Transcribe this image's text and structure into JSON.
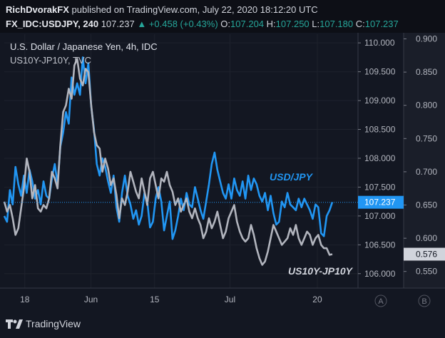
{
  "header": {
    "author": "RichDvorakFX",
    "published_text": "published on TradingView.com, July 22, 2020 18:12:20 UTC",
    "symbol": "FX_IDC:USDJPY, 240",
    "last": "107.237",
    "change_arrow": "▲",
    "change": "+0.458 (+0.43%)",
    "o_label": "O:",
    "o_value": "107.204",
    "h_label": "H:",
    "h_value": "107.250",
    "l_label": "L:",
    "l_value": "107.180",
    "c_label": "C:",
    "c_value": "107.237"
  },
  "legend": {
    "main": "U.S. Dollar / Japanese Yen, 4h, IDC",
    "overlay": "US10Y-JP10Y, TVC"
  },
  "footer": {
    "brand": "TradingView",
    "logo_icon": "tradingview-logo-icon"
  },
  "colors": {
    "background": "#131722",
    "usdjpy": "#2196f3",
    "spread": "#b2b5be",
    "last_line": "#2196f3"
  },
  "chart_data": {
    "type": "line",
    "x_ticks": [
      "18",
      "Jun",
      "15",
      "Jul",
      "20"
    ],
    "axis_badges": [
      "A",
      "B"
    ],
    "right_axis_usdjpy": {
      "ticks": [
        "110.000",
        "109.500",
        "109.000",
        "108.500",
        "108.000",
        "107.500",
        "107.000",
        "106.500",
        "106.000"
      ],
      "range": [
        105.75,
        110.15
      ]
    },
    "right_axis_spread": {
      "ticks": [
        "0.900",
        "0.850",
        "0.800",
        "0.750",
        "0.700",
        "0.650",
        "0.600",
        "0.550"
      ],
      "range": [
        0.525,
        0.907
      ]
    },
    "last_value_usdjpy": "107.237",
    "last_value_spread": "0.576",
    "series": [
      {
        "name": "USD/JPY",
        "axis": "usdjpy",
        "values": [
          107.0,
          106.9,
          107.45,
          107.2,
          107.85,
          107.55,
          107.35,
          107.7,
          107.4,
          107.8,
          107.6,
          107.3,
          107.45,
          107.2,
          107.6,
          107.35,
          107.3,
          107.65,
          107.9,
          107.55,
          108.2,
          108.45,
          108.8,
          108.6,
          109.4,
          109.1,
          109.3,
          109.1,
          109.75,
          109.3,
          109.65,
          108.9,
          108.5,
          107.9,
          107.7,
          108.0,
          107.85,
          107.6,
          107.4,
          107.7,
          107.15,
          106.9,
          107.4,
          107.7,
          107.35,
          107.2,
          106.95,
          107.1,
          106.85,
          107.0,
          107.4,
          107.25,
          106.8,
          106.9,
          107.3,
          107.5,
          107.25,
          106.75,
          107.0,
          107.25,
          106.6,
          106.75,
          107.0,
          107.3,
          107.1,
          107.4,
          107.2,
          107.15,
          107.5,
          107.3,
          107.1,
          106.95,
          107.25,
          107.55,
          107.9,
          108.1,
          107.8,
          107.6,
          107.4,
          107.3,
          107.55,
          107.3,
          107.65,
          107.45,
          107.35,
          107.6,
          107.3,
          107.7,
          107.45,
          107.65,
          107.55,
          107.35,
          107.25,
          107.4,
          107.1,
          107.35,
          107.05,
          106.85,
          106.9,
          107.25,
          107.15,
          107.4,
          107.2,
          107.15,
          107.1,
          107.3,
          107.15,
          107.3,
          107.2,
          107.1,
          106.95,
          107.2,
          107.15,
          106.7,
          106.65,
          107.0,
          107.1,
          107.24
        ],
        "color": "#2196f3"
      },
      {
        "name": "US10Y-JP10Y",
        "axis": "spread",
        "values": [
          0.655,
          0.64,
          0.65,
          0.63,
          0.605,
          0.615,
          0.645,
          0.675,
          0.72,
          0.7,
          0.66,
          0.68,
          0.645,
          0.64,
          0.65,
          0.645,
          0.66,
          0.7,
          0.69,
          0.675,
          0.74,
          0.79,
          0.8,
          0.825,
          0.81,
          0.86,
          0.87,
          0.84,
          0.83,
          0.855,
          0.85,
          0.8,
          0.76,
          0.74,
          0.735,
          0.7,
          0.72,
          0.705,
          0.68,
          0.69,
          0.665,
          0.63,
          0.66,
          0.65,
          0.67,
          0.7,
          0.685,
          0.67,
          0.66,
          0.69,
          0.67,
          0.65,
          0.69,
          0.7,
          0.68,
          0.66,
          0.69,
          0.685,
          0.7,
          0.68,
          0.67,
          0.65,
          0.66,
          0.64,
          0.65,
          0.66,
          0.64,
          0.63,
          0.645,
          0.63,
          0.62,
          0.6,
          0.61,
          0.63,
          0.615,
          0.625,
          0.64,
          0.62,
          0.6,
          0.61,
          0.63,
          0.64,
          0.65,
          0.625,
          0.61,
          0.6,
          0.595,
          0.6,
          0.62,
          0.605,
          0.585,
          0.57,
          0.56,
          0.565,
          0.58,
          0.6,
          0.62,
          0.61,
          0.6,
          0.59,
          0.595,
          0.6,
          0.615,
          0.605,
          0.62,
          0.6,
          0.59,
          0.6,
          0.61,
          0.605,
          0.59,
          0.6,
          0.605,
          0.59,
          0.585,
          0.585,
          0.575,
          0.576
        ],
        "color": "#b2b5be"
      }
    ],
    "series_labels": [
      {
        "text": "USD/JPY",
        "color": "#2196f3"
      },
      {
        "text": "US10Y-JP10Y",
        "color": "#d1d4dc"
      }
    ]
  }
}
